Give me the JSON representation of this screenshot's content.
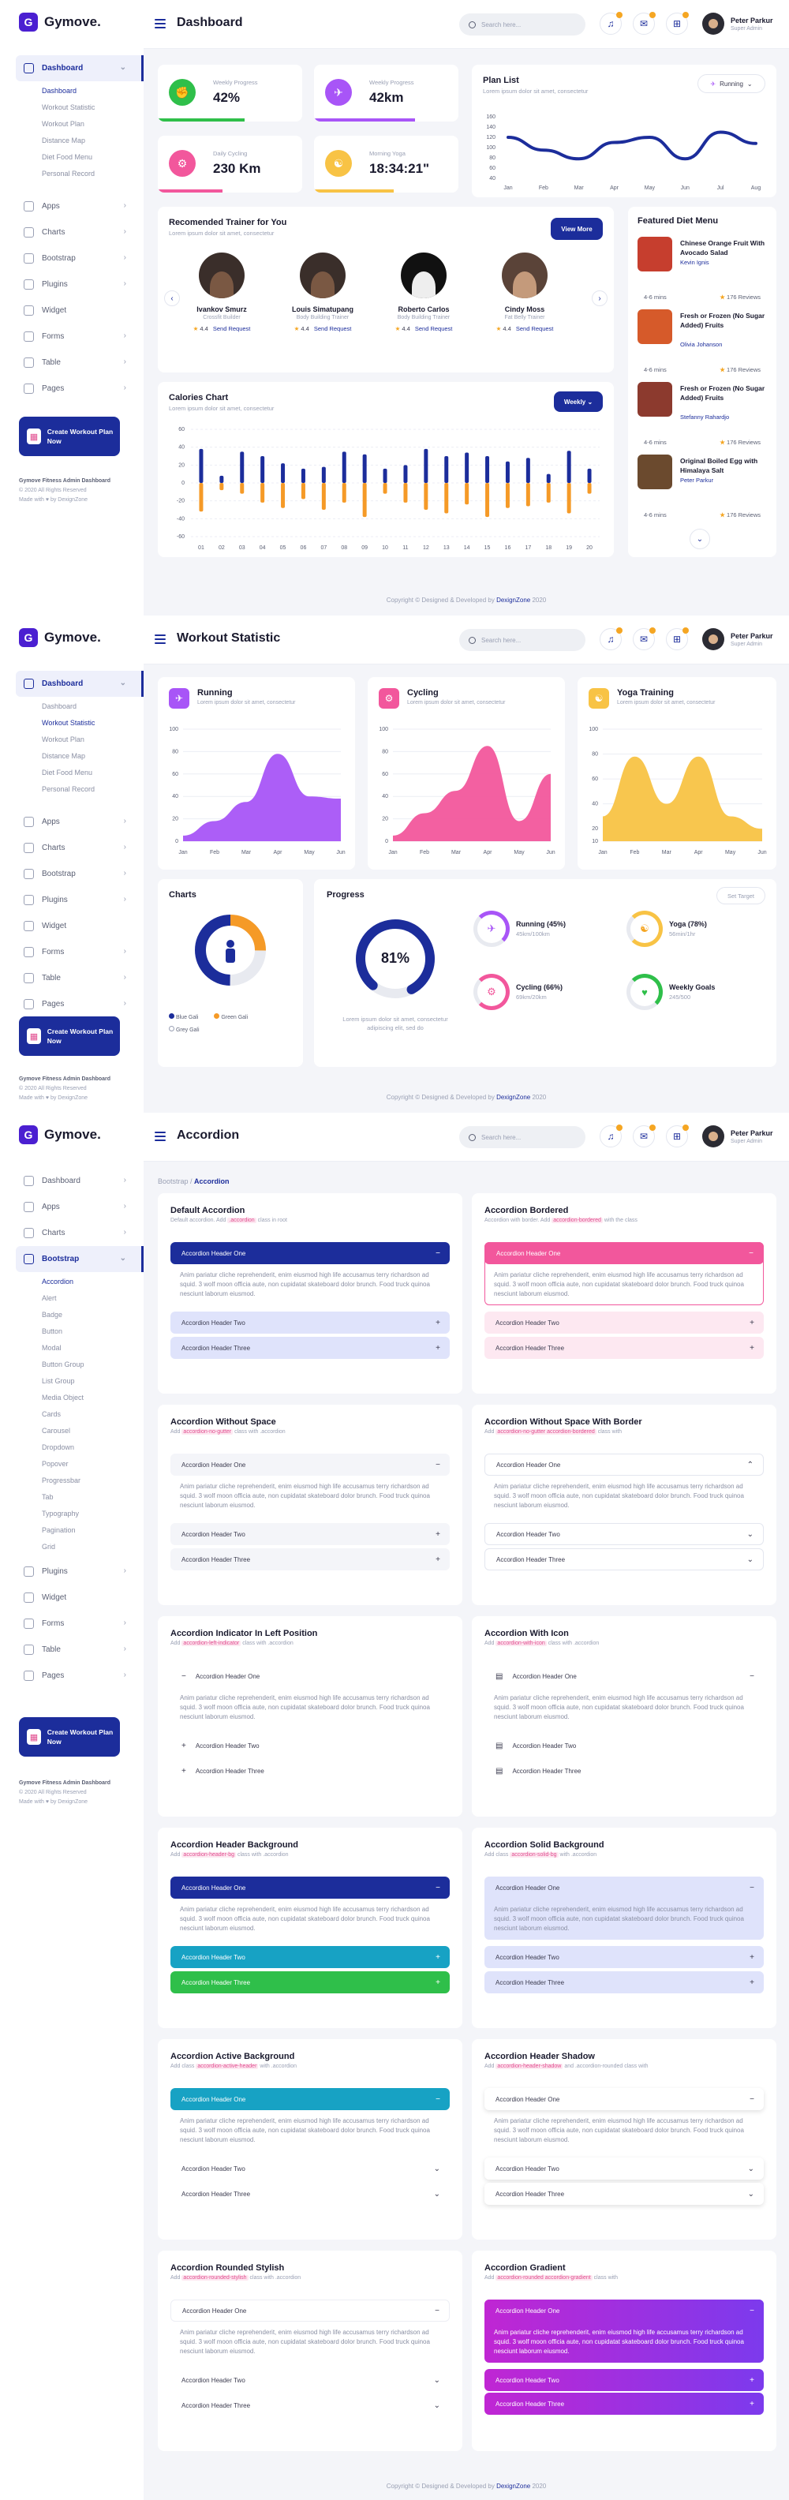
{
  "brand": {
    "name": "Gymove."
  },
  "user": {
    "name": "Peter Parkur",
    "role": "Super Admin"
  },
  "search": {
    "placeholder": "Search here..."
  },
  "sidebar": {
    "cta": "Create Workout Plan Now",
    "footer_title": "Gymove Fitness Admin Dashboard",
    "footer_copy": "© 2020 All Rights Reserved",
    "footer_made": "Made with ♥ by DexignZone",
    "dashboard": "Dashboard",
    "dashboard_subs": [
      "Dashboard",
      "Workout Statistic",
      "Workout Plan",
      "Distance Map",
      "Diet Food Menu",
      "Personal Record"
    ],
    "items": [
      "Apps",
      "Charts",
      "Bootstrap",
      "Plugins",
      "Widget",
      "Forms",
      "Table",
      "Pages"
    ],
    "bootstrap_subs": [
      "Accordion",
      "Alert",
      "Badge",
      "Button",
      "Modal",
      "Button Group",
      "List Group",
      "Media Object",
      "Cards",
      "Carousel",
      "Dropdown",
      "Popover",
      "Progressbar",
      "Tab",
      "Typography",
      "Pagination",
      "Grid"
    ]
  },
  "page1": {
    "title": "Dashboard",
    "stats": [
      {
        "label": "Weekly Progress",
        "value": "42%"
      },
      {
        "label": "Weekly Progress",
        "value": "42km"
      },
      {
        "label": "Daily Cycling",
        "value": "230 Km"
      },
      {
        "label": "Morning Yoga",
        "value": "18:34:21\""
      }
    ],
    "plan": {
      "title": "Plan List",
      "subtitle": "Lorem ipsum dolor sit amet, consectetur",
      "filter": "Running",
      "yticks": [
        "160",
        "140",
        "120",
        "100",
        "80",
        "60",
        "40"
      ],
      "months": [
        "Jan",
        "Feb",
        "Mar",
        "Apr",
        "May",
        "Jun",
        "Jul",
        "Aug"
      ]
    },
    "trainer": {
      "title": "Recomended Trainer for You",
      "subtitle": "Lorem ipsum dolor sit amet, consectetur",
      "more": "View More",
      "list": [
        {
          "name": "Ivankov Smurz",
          "role": "Crossfit Builder",
          "rating": "4.4",
          "action": "Send Request"
        },
        {
          "name": "Louis Simatupang",
          "role": "Body Building Trainer",
          "rating": "4.4",
          "action": "Send Request"
        },
        {
          "name": "Roberto Carlos",
          "role": "Body Building Trainer",
          "rating": "4.4",
          "action": "Send Request"
        },
        {
          "name": "Cindy Moss",
          "role": "Fat Belly Trainer",
          "rating": "4.4",
          "action": "Send Request"
        }
      ]
    },
    "diet": {
      "title": "Featured Diet Menu",
      "list": [
        {
          "name": "Chinese Orange Fruit With Avocado Salad",
          "author": "Kevin Ignis",
          "time": "4-6 mins",
          "reviews": "176 Reviews"
        },
        {
          "name": "Fresh or Frozen (No Sugar Added) Fruits",
          "author": "Olivia Johanson",
          "time": "4-6 mins",
          "reviews": "176 Reviews"
        },
        {
          "name": "Fresh or Frozen (No Sugar Added) Fruits",
          "author": "Stefanny Rahardjo",
          "time": "4-6 mins",
          "reviews": "176 Reviews"
        },
        {
          "name": "Original Boiled Egg with Himalaya Salt",
          "author": "Peter Parkur",
          "time": "4-6 mins",
          "reviews": "176 Reviews"
        }
      ]
    },
    "calories": {
      "title": "Calories Chart",
      "subtitle": "Lorem ipsum dolor sit amet, consectetur",
      "filter": "Weekly",
      "yticks": [
        "60",
        "40",
        "20",
        "0",
        "-20",
        "-40",
        "-60"
      ],
      "days": [
        "01",
        "02",
        "03",
        "04",
        "05",
        "06",
        "07",
        "08",
        "09",
        "10",
        "11",
        "12",
        "13",
        "14",
        "15",
        "16",
        "17",
        "18",
        "19",
        "20"
      ]
    },
    "footer": "Copyright © Designed & Developed by",
    "footer_link": "DexignZone",
    "footer_year": "2020"
  },
  "chart_data": [
    {
      "type": "line",
      "title": "Plan List",
      "x": [
        "Jan",
        "Feb",
        "Mar",
        "Apr",
        "May",
        "Jun",
        "Jul",
        "Aug"
      ],
      "series": [
        {
          "values": [
            120,
            95,
            78,
            110,
            120,
            78,
            130,
            108
          ]
        }
      ],
      "ylim": [
        40,
        160
      ]
    },
    {
      "type": "bar",
      "title": "Calories Chart",
      "categories": [
        "01",
        "02",
        "03",
        "04",
        "05",
        "06",
        "07",
        "08",
        "09",
        "10",
        "11",
        "12",
        "13",
        "14",
        "15",
        "16",
        "17",
        "18",
        "19",
        "20"
      ],
      "series": [
        {
          "values": [
            38,
            8,
            35,
            30,
            22,
            16,
            18,
            35,
            32,
            16,
            20,
            38,
            30,
            34,
            30,
            24,
            28,
            10,
            36,
            16
          ]
        },
        {
          "values": [
            -32,
            -8,
            -12,
            -22,
            -28,
            -18,
            -30,
            -22,
            -38,
            -12,
            -22,
            -30,
            -34,
            -24,
            -38,
            -28,
            -26,
            -22,
            -34,
            -12
          ]
        }
      ],
      "ylim": [
        -60,
        60
      ]
    },
    {
      "type": "area",
      "title": "Running",
      "x": [
        "Jan",
        "Feb",
        "Mar",
        "Apr",
        "May",
        "Jun"
      ],
      "series": [
        {
          "values": [
            5,
            18,
            35,
            78,
            40,
            38
          ]
        }
      ],
      "ylim": [
        0,
        100
      ]
    },
    {
      "type": "area",
      "title": "Cycling",
      "x": [
        "Jan",
        "Feb",
        "Mar",
        "Apr",
        "May",
        "Jun"
      ],
      "series": [
        {
          "values": [
            5,
            25,
            45,
            85,
            18,
            60
          ]
        }
      ],
      "ylim": [
        0,
        100
      ]
    },
    {
      "type": "area",
      "title": "Yoga Training",
      "x": [
        "Jan",
        "Feb",
        "Mar",
        "Apr",
        "May",
        "Jun"
      ],
      "series": [
        {
          "values": [
            30,
            78,
            40,
            78,
            30,
            20
          ]
        }
      ],
      "ylim": [
        10,
        100
      ]
    }
  ],
  "page2": {
    "title": "Workout Statistic",
    "cards": [
      {
        "title": "Running",
        "subtitle": "Lorem ipsum dolor sit amet, consectetur"
      },
      {
        "title": "Cycling",
        "subtitle": "Lorem ipsum dolor sit amet, consectetur"
      },
      {
        "title": "Yoga Training",
        "subtitle": "Lorem ipsum dolor sit amet, consectetur"
      }
    ],
    "area_yticks": [
      "100",
      "80",
      "60",
      "40",
      "20",
      "0"
    ],
    "yoga_yticks": [
      "100",
      "80",
      "60",
      "40",
      "20",
      "10"
    ],
    "months": [
      "Jan",
      "Feb",
      "Mar",
      "Apr",
      "May",
      "Jun"
    ],
    "charts_title": "Charts",
    "legend": [
      "Blue Gali",
      "Green Gali",
      "Grey Gali"
    ],
    "progress": {
      "title": "Progress",
      "goal": "Set Target",
      "pct": "81%",
      "desc": "Lorem ipsum dolor sit amet, consectetur adipiscing elit, sed do",
      "items": [
        {
          "label": "Running (45%)",
          "value": "45km/100km"
        },
        {
          "label": "Yoga (78%)",
          "value": "56min/1hr"
        },
        {
          "label": "Cycling (66%)",
          "value": "69km/20km"
        },
        {
          "label": "Weekly Goals",
          "value": "245/500"
        }
      ]
    }
  },
  "page3": {
    "title": "Accordion",
    "crumb_parent": "Bootstrap",
    "crumb_current": "Accordion",
    "body": "Anim pariatur cliche reprehenderit, enim eiusmod high life accusamus terry richardson ad squid. 3 wolf moon officia aute, non cupidatat skateboard dolor brunch. Food truck quinoa nesciunt laborum eiusmod.",
    "h1": "Accordion Header One",
    "h2": "Accordion Header Two",
    "h3": "Accordion Header Three",
    "cards": [
      {
        "title": "Default Accordion",
        "sub": "Default accordion. Add",
        "tag": ".accordion",
        "sub2": "class in root"
      },
      {
        "title": "Accordion Bordered",
        "sub": "Accordion with border. Add",
        "tag": "accordion-bordered",
        "sub2": "with the class"
      },
      {
        "title": "Accordion Without Space",
        "sub": "Add",
        "tag": "accordion-no-gutter",
        "sub2": "class with .accordion"
      },
      {
        "title": "Accordion Without Space With Border",
        "sub": "Add",
        "tag": "accordion-no-gutter accordion-bordered",
        "sub2": "class with"
      },
      {
        "title": "Accordion Indicator In Left Position",
        "sub": "Add",
        "tag": "accordion-left-indicator",
        "sub2": "class with .accordion"
      },
      {
        "title": "Accordion With Icon",
        "sub": "Add",
        "tag": "accordion-with-icon",
        "sub2": "class with .accordion"
      },
      {
        "title": "Accordion Header Background",
        "sub": "Add",
        "tag": "accordion-header-bg",
        "sub2": "class with .accordion"
      },
      {
        "title": "Accordion Solid Background",
        "sub": "Add class",
        "tag": "accordion-solid-bg",
        "sub2": "with .accordion"
      },
      {
        "title": "Accordion Active Background",
        "sub": "Add class",
        "tag": "accordion-active-header",
        "sub2": "with .accordion"
      },
      {
        "title": "Accordion Header Shadow",
        "sub": "Add",
        "tag": "accordion-header-shadow",
        "sub2": "and .accordion-rounded class with"
      },
      {
        "title": "Accordion Rounded Stylish",
        "sub": "Add",
        "tag": "accordion-rounded-stylish",
        "sub2": "class with .accordion"
      },
      {
        "title": "Accordion Gradient",
        "sub": "Add",
        "tag": "accordion-rounded accordion-gradient",
        "sub2": "class with"
      }
    ]
  },
  "colors": {
    "primary": "#1c2d9b",
    "pink": "#f2579c",
    "purple": "#a855f7",
    "yellow": "#f8c345",
    "orange": "#f59a27",
    "green": "#2fbf4a",
    "teal": "#17a2c4"
  }
}
